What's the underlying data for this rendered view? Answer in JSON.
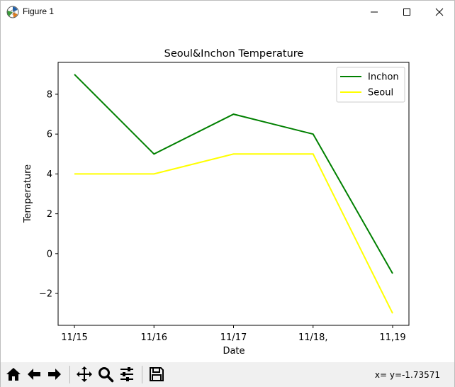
{
  "window": {
    "title": "Figure 1",
    "minimize_icon": "minimize-icon",
    "maximize_icon": "maximize-icon",
    "close_icon": "close-icon"
  },
  "toolbar": {
    "buttons": [
      {
        "name": "home",
        "icon": "home-icon"
      },
      {
        "name": "back",
        "icon": "back-arrow-icon"
      },
      {
        "name": "forward",
        "icon": "forward-arrow-icon"
      },
      {
        "name": "pan",
        "icon": "pan-icon"
      },
      {
        "name": "zoom",
        "icon": "zoom-icon"
      },
      {
        "name": "configure-subplots",
        "icon": "sliders-icon"
      },
      {
        "name": "save",
        "icon": "save-icon"
      }
    ],
    "coords": "x= y=-1.73571"
  },
  "chart_data": {
    "type": "line",
    "title": "Seoul&Inchon Temperature",
    "xlabel": "Date",
    "ylabel": "Temperature",
    "categories": [
      "11/15",
      "11/16",
      "11/17",
      "11/18,",
      "11,19"
    ],
    "series": [
      {
        "name": "Inchon",
        "values": [
          9,
          5,
          7,
          6,
          -1
        ],
        "color": "#008000"
      },
      {
        "name": "Seoul",
        "values": [
          4,
          4,
          5,
          5,
          -3
        ],
        "color": "#ffff00"
      }
    ],
    "ylim": [
      -3.6,
      9.6
    ],
    "yticks": [
      -2,
      0,
      2,
      4,
      6,
      8
    ],
    "ytick_labels": [
      "−2",
      "0",
      "2",
      "4",
      "6",
      "8"
    ],
    "grid": false,
    "legend": "top-right"
  }
}
